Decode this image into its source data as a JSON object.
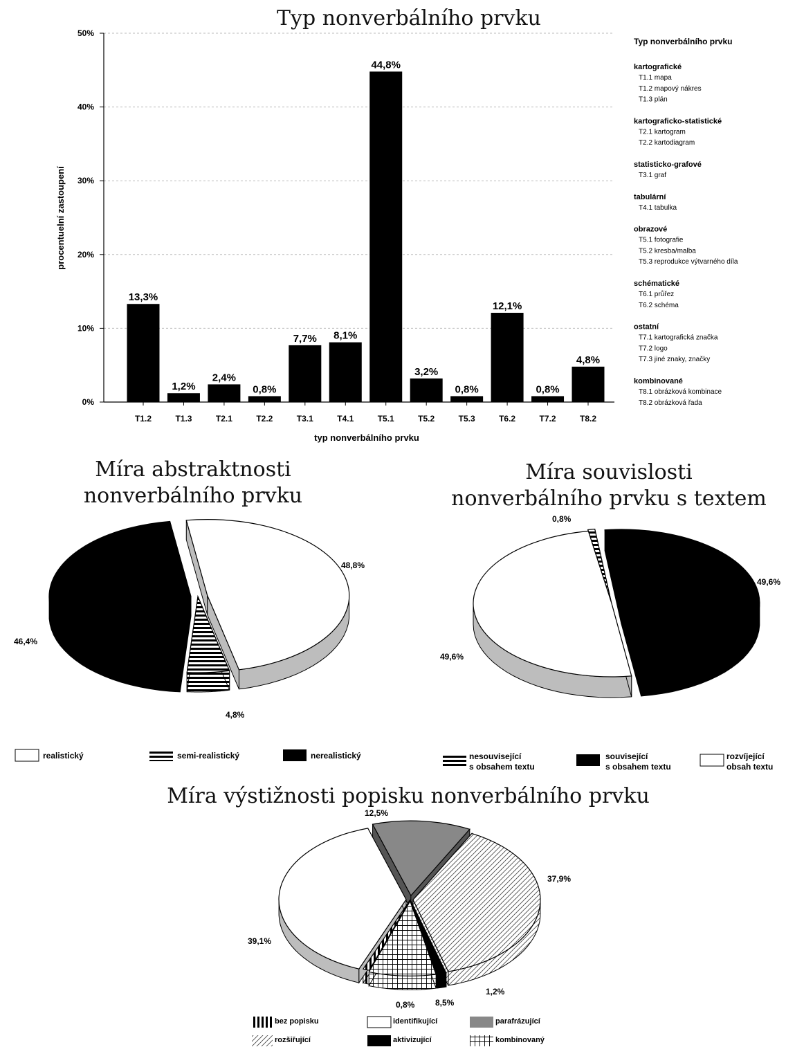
{
  "chart_data": [
    {
      "type": "bar",
      "title": "Typ nonverbálního prvku",
      "xlabel": "typ nonverbálního prvku",
      "ylabel": "procentuelní zastoupení",
      "ylim": [
        0,
        50
      ],
      "yticks": [
        "0%",
        "10%",
        "20%",
        "30%",
        "40%",
        "50%"
      ],
      "grid": true,
      "categories": [
        "T1.2",
        "T1.3",
        "T2.1",
        "T2.2",
        "T3.1",
        "T4.1",
        "T5.1",
        "T5.2",
        "T5.3",
        "T6.2",
        "T7.2",
        "T8.2"
      ],
      "values": [
        13.3,
        1.2,
        2.4,
        0.8,
        7.7,
        8.1,
        44.8,
        3.2,
        0.8,
        12.1,
        0.8,
        4.8
      ],
      "value_labels": [
        "13,3%",
        "1,2%",
        "2,4%",
        "0,8%",
        "7,7%",
        "8,1%",
        "44,8%",
        "3,2%",
        "0,8%",
        "12,1%",
        "0,8%",
        "4,8%"
      ],
      "legend_title": "Typ nonverbálního prvku",
      "legend_groups": [
        {
          "name": "kartografické",
          "items": [
            "T1.1 mapa",
            "T1.2 mapový nákres",
            "T1.3 plán"
          ]
        },
        {
          "name": "kartograficko-statistické",
          "items": [
            "T2.1 kartogram",
            "T2.2 kartodiagram"
          ]
        },
        {
          "name": "statisticko-grafové",
          "items": [
            "T3.1 graf"
          ]
        },
        {
          "name": "tabulární",
          "items": [
            "T4.1 tabulka"
          ]
        },
        {
          "name": "obrazové",
          "items": [
            "T5.1 fotografie",
            "T5.2 kresba/malba",
            "T5.3 reprodukce výtvarného díla"
          ]
        },
        {
          "name": "schématické",
          "items": [
            "T6.1 průřez",
            "T6.2 schéma"
          ]
        },
        {
          "name": "ostatní",
          "items": [
            "T7.1 kartografická značka",
            "T7.2 logo",
            "T7.3 jiné znaky, značky"
          ]
        },
        {
          "name": "kombinované",
          "items": [
            "T8.1 obrázková kombinace",
            "T8.2 obrázková řada"
          ]
        }
      ],
      "color": "#000000"
    },
    {
      "type": "pie",
      "title_lines": [
        "Míra abstraktnosti",
        "nonverbálního prvku"
      ],
      "labels": [
        "realistický",
        "semi-realistický",
        "nerealistický"
      ],
      "values": [
        48.8,
        4.8,
        46.4
      ],
      "value_labels": [
        "48,8%",
        "4,8%",
        "46,4%"
      ],
      "fills": [
        "white",
        "hstripes",
        "black"
      ],
      "legend": "bottom"
    },
    {
      "type": "pie",
      "title_lines": [
        "Míra souvislosti",
        "nonverbálního prvku s textem"
      ],
      "labels": [
        "nesouvisející s obsahem textu",
        "související s obsahem textu",
        "rozvíjející obsah textu"
      ],
      "legend_lines": [
        [
          "nesouvisející",
          "s obsahem textu"
        ],
        [
          "související",
          "s obsahem textu"
        ],
        [
          "rozvíjející",
          "obsah textu"
        ]
      ],
      "values": [
        0.8,
        49.6,
        49.6
      ],
      "value_labels": [
        "0,8%",
        "49,6%",
        "49,6%"
      ],
      "fills": [
        "hstripes",
        "black",
        "white"
      ],
      "legend": "bottom"
    },
    {
      "type": "pie",
      "title": "Míra výstižnosti popisku nonverbálního prvku",
      "labels": [
        "bez popisku",
        "identifikující",
        "parafrázující",
        "rozšiřující",
        "aktivizující",
        "kombinovaný"
      ],
      "values": [
        0.8,
        39.1,
        12.5,
        37.9,
        1.2,
        8.5
      ],
      "value_labels": [
        "0,8%",
        "39,1%",
        "12,5%",
        "37,9%",
        "1,2%",
        "8,5%"
      ],
      "fills": [
        "vstripes",
        "white",
        "gray",
        "diag",
        "black",
        "grid"
      ],
      "legend": "bottom"
    }
  ]
}
